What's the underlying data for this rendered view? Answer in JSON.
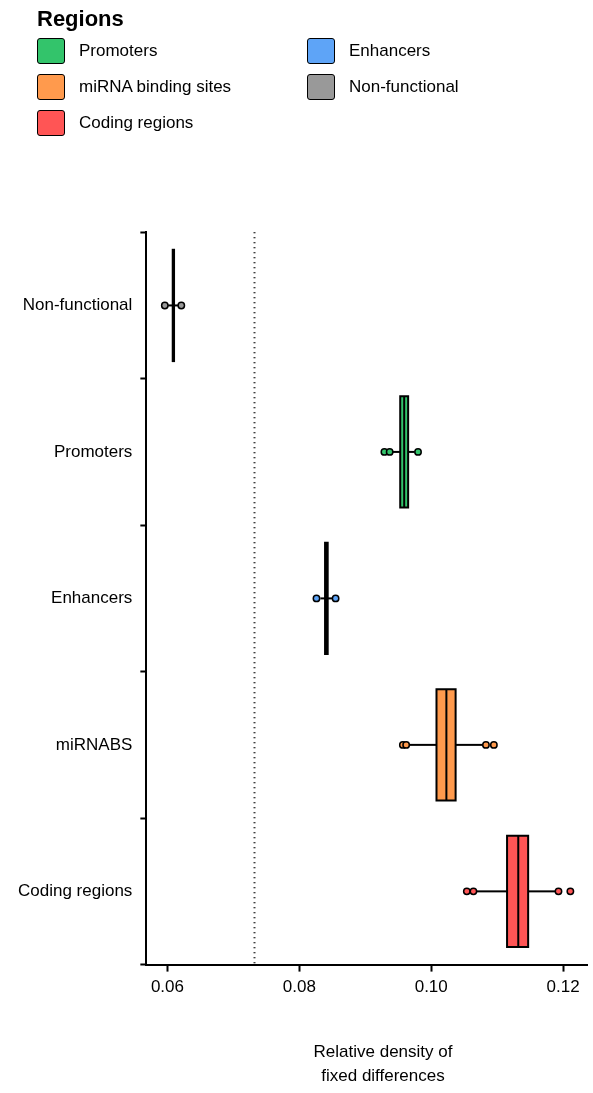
{
  "chart_data": {
    "type": "box",
    "orientation": "horizontal",
    "legend_title": "Regions",
    "legend": "top",
    "xlabel": "Relative density of fixed differences",
    "categories": [
      "Non-functional",
      "Promoters",
      "Enhancers",
      "miRNABS",
      "Coding regions"
    ],
    "xlim": [
      0.0568,
      0.1237
    ],
    "xticks": [
      {
        "value": 0.06,
        "label": "0.06"
      },
      {
        "value": 0.08,
        "label": "0.08"
      },
      {
        "value": 0.1,
        "label": "0.10"
      },
      {
        "value": 0.12,
        "label": "0.12"
      }
    ],
    "grid": false,
    "ref_lines": [
      {
        "axis": "x",
        "value": 0.0732,
        "line_style": "dotted",
        "color": "#000000"
      }
    ],
    "series": [
      {
        "name": "Promoters",
        "color": "#33c46b",
        "boxes": [
          null,
          {
            "low": 0.0942,
            "q1": 0.0953,
            "median": 0.0959,
            "q3": 0.0965,
            "high": 0.0975,
            "outliers": [
              0.0929,
              0.0937,
              0.098
            ]
          },
          null,
          null,
          null
        ]
      },
      {
        "name": "Enhancers",
        "color": "#5ea4f7",
        "boxes": [
          null,
          null,
          {
            "low": 0.0832,
            "q1": 0.0839,
            "median": 0.0841,
            "q3": 0.0843,
            "high": 0.085,
            "outliers": [
              0.0826,
              0.0855
            ]
          },
          null,
          null
        ]
      },
      {
        "name": "miRNA binding sites",
        "color": "#ff9a4d",
        "boxes": [
          null,
          null,
          null,
          {
            "low": 0.0967,
            "q1": 0.1008,
            "median": 0.1023,
            "q3": 0.1037,
            "high": 0.1079,
            "outliers": [
              0.0957,
              0.0962,
              0.1083,
              0.1095
            ]
          },
          null
        ]
      },
      {
        "name": "Non-functional",
        "color": "#999999",
        "boxes": [
          {
            "low": 0.0601,
            "q1": 0.0608,
            "median": 0.0609,
            "q3": 0.061,
            "high": 0.0617,
            "outliers": [
              0.0596,
              0.0621
            ]
          },
          null,
          null,
          null,
          null
        ]
      },
      {
        "name": "Coding regions",
        "color": "#ff5555",
        "boxes": [
          null,
          null,
          null,
          null,
          {
            "low": 0.1068,
            "q1": 0.1115,
            "median": 0.1132,
            "q3": 0.1147,
            "high": 0.1188,
            "outliers": [
              0.1054,
              0.1064,
              0.1193,
              0.1211
            ]
          }
        ]
      }
    ]
  }
}
